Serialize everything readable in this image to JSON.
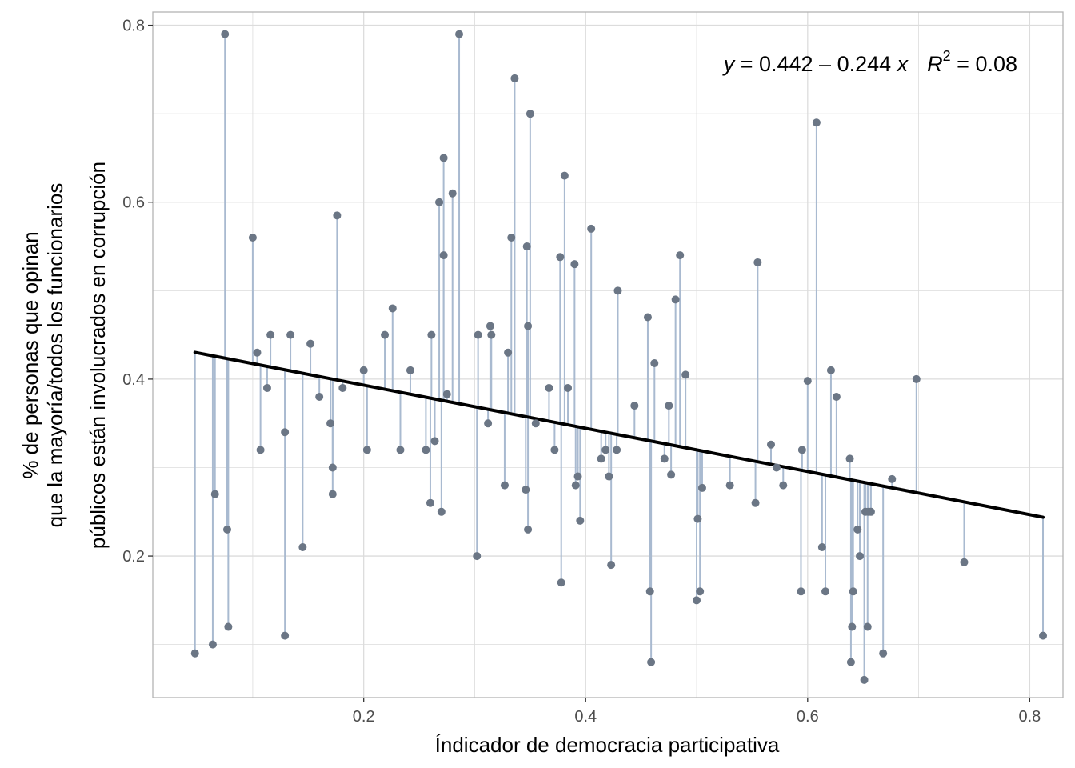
{
  "chart_data": {
    "type": "scatter",
    "title": "",
    "xlabel": "Índicador de democracia participativa",
    "ylabel_lines": [
      "% de personas que opinan",
      "que la mayoría/todos  los funcionarios",
      "públicos están involucrados en corrupción"
    ],
    "xlim": [
      0.01,
      0.83
    ],
    "ylim": [
      0.04,
      0.815
    ],
    "x_ticks": [
      0.2,
      0.4,
      0.6,
      0.8
    ],
    "x_tick_labels": [
      "0.2",
      "0.4",
      "0.6",
      "0.8"
    ],
    "y_ticks": [
      0.2,
      0.4,
      0.6,
      0.8
    ],
    "y_tick_labels": [
      "0.2",
      "0.4",
      "0.6",
      "0.8"
    ],
    "grid": true,
    "regression": {
      "intercept": 0.442,
      "slope": -0.244,
      "r2": 0.08,
      "x_range": [
        0.048,
        0.812
      ]
    },
    "annotation": {
      "y_sym": "y",
      "equation": " = 0.442 – 0.244 ",
      "x_sym": "x",
      "r_sym": "R",
      "r_exp": "2",
      "r_value": " = 0.08"
    },
    "colors": {
      "point": "#6b7685",
      "segment": "#a9bad0",
      "line": "#000000",
      "grid": "#dcdcdc",
      "panel_border": "#b3b3b3"
    },
    "points": [
      {
        "x": 0.048,
        "y": 0.09
      },
      {
        "x": 0.064,
        "y": 0.1
      },
      {
        "x": 0.066,
        "y": 0.27
      },
      {
        "x": 0.075,
        "y": 0.79
      },
      {
        "x": 0.077,
        "y": 0.23
      },
      {
        "x": 0.078,
        "y": 0.12
      },
      {
        "x": 0.1,
        "y": 0.56
      },
      {
        "x": 0.104,
        "y": 0.43
      },
      {
        "x": 0.107,
        "y": 0.32
      },
      {
        "x": 0.113,
        "y": 0.39
      },
      {
        "x": 0.116,
        "y": 0.45
      },
      {
        "x": 0.129,
        "y": 0.34
      },
      {
        "x": 0.129,
        "y": 0.11
      },
      {
        "x": 0.134,
        "y": 0.45
      },
      {
        "x": 0.145,
        "y": 0.21
      },
      {
        "x": 0.152,
        "y": 0.44
      },
      {
        "x": 0.16,
        "y": 0.38
      },
      {
        "x": 0.17,
        "y": 0.35
      },
      {
        "x": 0.172,
        "y": 0.3
      },
      {
        "x": 0.172,
        "y": 0.27
      },
      {
        "x": 0.176,
        "y": 0.585
      },
      {
        "x": 0.181,
        "y": 0.39
      },
      {
        "x": 0.2,
        "y": 0.41
      },
      {
        "x": 0.203,
        "y": 0.32
      },
      {
        "x": 0.219,
        "y": 0.45
      },
      {
        "x": 0.226,
        "y": 0.48
      },
      {
        "x": 0.233,
        "y": 0.32
      },
      {
        "x": 0.242,
        "y": 0.41
      },
      {
        "x": 0.256,
        "y": 0.32
      },
      {
        "x": 0.26,
        "y": 0.26
      },
      {
        "x": 0.261,
        "y": 0.45
      },
      {
        "x": 0.264,
        "y": 0.33
      },
      {
        "x": 0.268,
        "y": 0.6
      },
      {
        "x": 0.27,
        "y": 0.25
      },
      {
        "x": 0.272,
        "y": 0.54
      },
      {
        "x": 0.272,
        "y": 0.65
      },
      {
        "x": 0.275,
        "y": 0.383
      },
      {
        "x": 0.28,
        "y": 0.61
      },
      {
        "x": 0.286,
        "y": 0.79
      },
      {
        "x": 0.302,
        "y": 0.2
      },
      {
        "x": 0.303,
        "y": 0.45
      },
      {
        "x": 0.312,
        "y": 0.35
      },
      {
        "x": 0.314,
        "y": 0.46
      },
      {
        "x": 0.315,
        "y": 0.45
      },
      {
        "x": 0.327,
        "y": 0.28
      },
      {
        "x": 0.33,
        "y": 0.43
      },
      {
        "x": 0.333,
        "y": 0.56
      },
      {
        "x": 0.336,
        "y": 0.74
      },
      {
        "x": 0.346,
        "y": 0.275
      },
      {
        "x": 0.347,
        "y": 0.55
      },
      {
        "x": 0.348,
        "y": 0.46
      },
      {
        "x": 0.348,
        "y": 0.23
      },
      {
        "x": 0.35,
        "y": 0.7
      },
      {
        "x": 0.355,
        "y": 0.35
      },
      {
        "x": 0.367,
        "y": 0.39
      },
      {
        "x": 0.372,
        "y": 0.32
      },
      {
        "x": 0.377,
        "y": 0.538
      },
      {
        "x": 0.378,
        "y": 0.17
      },
      {
        "x": 0.381,
        "y": 0.63
      },
      {
        "x": 0.384,
        "y": 0.39
      },
      {
        "x": 0.39,
        "y": 0.53
      },
      {
        "x": 0.391,
        "y": 0.28
      },
      {
        "x": 0.393,
        "y": 0.29
      },
      {
        "x": 0.395,
        "y": 0.24
      },
      {
        "x": 0.405,
        "y": 0.57
      },
      {
        "x": 0.414,
        "y": 0.31
      },
      {
        "x": 0.418,
        "y": 0.32
      },
      {
        "x": 0.421,
        "y": 0.29
      },
      {
        "x": 0.423,
        "y": 0.19
      },
      {
        "x": 0.428,
        "y": 0.32
      },
      {
        "x": 0.429,
        "y": 0.5
      },
      {
        "x": 0.444,
        "y": 0.37
      },
      {
        "x": 0.456,
        "y": 0.47
      },
      {
        "x": 0.458,
        "y": 0.16
      },
      {
        "x": 0.459,
        "y": 0.08
      },
      {
        "x": 0.462,
        "y": 0.418
      },
      {
        "x": 0.471,
        "y": 0.31
      },
      {
        "x": 0.475,
        "y": 0.37
      },
      {
        "x": 0.477,
        "y": 0.292
      },
      {
        "x": 0.481,
        "y": 0.49
      },
      {
        "x": 0.485,
        "y": 0.54
      },
      {
        "x": 0.49,
        "y": 0.405
      },
      {
        "x": 0.5,
        "y": 0.15
      },
      {
        "x": 0.501,
        "y": 0.242
      },
      {
        "x": 0.503,
        "y": 0.16
      },
      {
        "x": 0.505,
        "y": 0.277
      },
      {
        "x": 0.53,
        "y": 0.28
      },
      {
        "x": 0.553,
        "y": 0.26
      },
      {
        "x": 0.555,
        "y": 0.532
      },
      {
        "x": 0.567,
        "y": 0.326
      },
      {
        "x": 0.572,
        "y": 0.3
      },
      {
        "x": 0.578,
        "y": 0.28
      },
      {
        "x": 0.594,
        "y": 0.16
      },
      {
        "x": 0.595,
        "y": 0.32
      },
      {
        "x": 0.6,
        "y": 0.398
      },
      {
        "x": 0.608,
        "y": 0.69
      },
      {
        "x": 0.613,
        "y": 0.21
      },
      {
        "x": 0.616,
        "y": 0.16
      },
      {
        "x": 0.621,
        "y": 0.41
      },
      {
        "x": 0.626,
        "y": 0.38
      },
      {
        "x": 0.638,
        "y": 0.31
      },
      {
        "x": 0.639,
        "y": 0.08
      },
      {
        "x": 0.64,
        "y": 0.12
      },
      {
        "x": 0.641,
        "y": 0.16
      },
      {
        "x": 0.645,
        "y": 0.23
      },
      {
        "x": 0.647,
        "y": 0.2
      },
      {
        "x": 0.651,
        "y": 0.06
      },
      {
        "x": 0.652,
        "y": 0.25
      },
      {
        "x": 0.654,
        "y": 0.12
      },
      {
        "x": 0.655,
        "y": 0.25
      },
      {
        "x": 0.657,
        "y": 0.25
      },
      {
        "x": 0.668,
        "y": 0.09
      },
      {
        "x": 0.676,
        "y": 0.287
      },
      {
        "x": 0.698,
        "y": 0.4
      },
      {
        "x": 0.741,
        "y": 0.193
      },
      {
        "x": 0.812,
        "y": 0.11
      }
    ]
  }
}
